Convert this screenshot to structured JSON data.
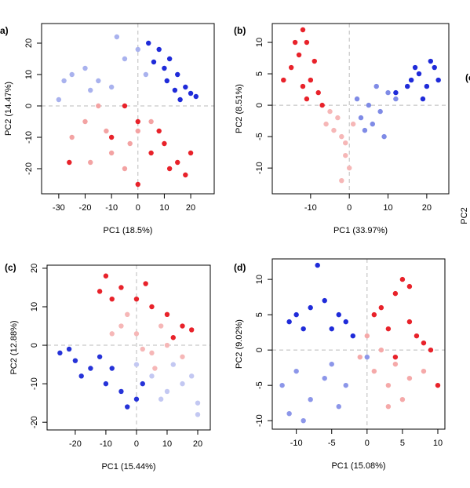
{
  "chart_data": [
    {
      "type": "scatter",
      "label": "(a)",
      "xlabel": "PC1 (18.5%)",
      "ylabel": "PC2 (14.47%)",
      "xlim": [
        -36.5,
        28.9
      ],
      "ylim": [
        -28,
        26.25
      ],
      "xticks": [
        -30,
        -20,
        -10,
        0,
        10,
        20
      ],
      "yticks": [
        -20,
        -10,
        0,
        10,
        20
      ],
      "hline": 0,
      "vline": 0,
      "series": [
        {
          "color": "#1f2bd9",
          "x": [
            8,
            12,
            15,
            18,
            20,
            14,
            10,
            6,
            16,
            22,
            11,
            4
          ],
          "values": [
            18,
            15,
            10,
            6,
            4,
            5,
            12,
            14,
            2,
            3,
            8,
            20
          ]
        },
        {
          "color": "#a9b2ee",
          "x": [
            -25,
            -20,
            -15,
            -10,
            -5,
            0,
            -18,
            -30,
            -8,
            3,
            -28
          ],
          "values": [
            10,
            12,
            8,
            6,
            15,
            18,
            5,
            2,
            22,
            10,
            8
          ]
        },
        {
          "color": "#f3a3a3",
          "x": [
            -20,
            -15,
            -10,
            -5,
            -25,
            0,
            -12,
            -18,
            5,
            -3
          ],
          "values": [
            -5,
            0,
            -15,
            -20,
            -10,
            -8,
            -8,
            -18,
            -5,
            -12
          ]
        },
        {
          "color": "#e8222a",
          "x": [
            5,
            10,
            15,
            20,
            0,
            -5,
            -10,
            8,
            18,
            -26,
            0,
            12
          ],
          "values": [
            -15,
            -12,
            -18,
            -15,
            -5,
            0,
            -10,
            -8,
            -22,
            -18,
            -25,
            -20
          ]
        }
      ]
    },
    {
      "type": "scatter",
      "label": "(b)",
      "xlabel": "PC1 (33.97%)",
      "ylabel": "PC2 (8.51%)",
      "xlim": [
        -19.9,
        25.7
      ],
      "ylim": [
        -14.1,
        13
      ],
      "xticks": [
        -10,
        0,
        10,
        20
      ],
      "yticks": [
        -10,
        -5,
        0,
        5,
        10
      ],
      "hline": 0,
      "vline": 0,
      "series": [
        {
          "color": "#1f2bd9",
          "x": [
            18,
            20,
            22,
            16,
            19,
            15,
            21,
            12,
            23,
            17
          ],
          "values": [
            5,
            3,
            6,
            4,
            1,
            3,
            7,
            2,
            4,
            6
          ]
        },
        {
          "color": "#7f8be6",
          "x": [
            5,
            8,
            10,
            3,
            6,
            12,
            2,
            7,
            4,
            9
          ],
          "values": [
            0,
            -1,
            2,
            -2,
            -3,
            1,
            1,
            3,
            -4,
            -5
          ]
        },
        {
          "color": "#f6b7b7",
          "x": [
            -3,
            -2,
            -1,
            -4,
            0,
            -2,
            -6,
            -1,
            -5,
            1
          ],
          "values": [
            -2,
            -5,
            -8,
            -4,
            -10,
            -12,
            -3,
            -6,
            -1,
            -3
          ]
        },
        {
          "color": "#e8222a",
          "x": [
            -13,
            -11,
            -15,
            -10,
            -8,
            -12,
            -14,
            -9,
            -11,
            -7,
            -17,
            -12
          ],
          "values": [
            8,
            10,
            6,
            4,
            2,
            3,
            10,
            7,
            1,
            0,
            4,
            12
          ]
        }
      ]
    },
    {
      "type": "scatter",
      "label": "(c)",
      "xlabel": "PC1 (15.44%)",
      "ylabel": "PC2 (12.88%)",
      "xlim": [
        -29.2,
        24.1
      ],
      "ylim": [
        -22,
        20.8
      ],
      "xticks": [
        -20,
        -10,
        0,
        10,
        20
      ],
      "yticks": [
        -20,
        -10,
        0,
        10,
        20
      ],
      "hline": 0,
      "vline": 0,
      "series": [
        {
          "color": "#e8222a",
          "x": [
            -10,
            -5,
            0,
            5,
            10,
            15,
            -8,
            3,
            12,
            -12,
            18
          ],
          "values": [
            18,
            15,
            12,
            10,
            8,
            5,
            12,
            16,
            2,
            14,
            4
          ]
        },
        {
          "color": "#f6b7b7",
          "x": [
            -5,
            0,
            5,
            10,
            -3,
            8,
            2,
            15,
            6,
            -8
          ],
          "values": [
            5,
            3,
            -2,
            0,
            8,
            5,
            -1,
            -3,
            -6,
            3
          ]
        },
        {
          "color": "#c3c8f2",
          "x": [
            5,
            10,
            15,
            20,
            0,
            12,
            18,
            8,
            20
          ],
          "values": [
            -8,
            -12,
            -10,
            -15,
            -5,
            -5,
            -8,
            -14,
            -18
          ]
        },
        {
          "color": "#2633d8",
          "x": [
            -25,
            -20,
            -15,
            -10,
            -5,
            0,
            -18,
            -12,
            -22,
            -8,
            2,
            -3
          ],
          "values": [
            -2,
            -4,
            -6,
            -10,
            -12,
            -14,
            -8,
            -3,
            -1,
            -6,
            -10,
            -16
          ]
        }
      ]
    },
    {
      "type": "scatter",
      "label": "(d)",
      "xlabel": "PC1 (15.08%)",
      "ylabel": "PC2 (9.02%)",
      "xlim": [
        -13.4,
        11
      ],
      "ylim": [
        -11.2,
        12.9
      ],
      "xticks": [
        -10,
        -5,
        0,
        5,
        10
      ],
      "yticks": [
        -10,
        -5,
        0,
        5,
        10
      ],
      "hline": 0,
      "vline": 0,
      "series": [
        {
          "color": "#1f2bd9",
          "x": [
            -10,
            -8,
            -5,
            -3,
            -6,
            -9,
            -4,
            -7,
            -11,
            -2
          ],
          "values": [
            5,
            6,
            3,
            4,
            7,
            3,
            5,
            12,
            4,
            2
          ]
        },
        {
          "color": "#8c96e9",
          "x": [
            -12,
            -10,
            -8,
            -5,
            -3,
            -9,
            -6,
            0,
            -11,
            -4
          ],
          "values": [
            -5,
            -3,
            -7,
            -2,
            -5,
            -10,
            -4,
            -1,
            -9,
            -8
          ]
        },
        {
          "color": "#f5a9a9",
          "x": [
            1,
            3,
            4,
            2,
            6,
            0,
            5,
            8,
            -1,
            3
          ],
          "values": [
            -3,
            -5,
            -2,
            0,
            -4,
            2,
            -7,
            -3,
            -1,
            -8
          ]
        },
        {
          "color": "#e8222a",
          "x": [
            2,
            4,
            6,
            5,
            7,
            8,
            3,
            6,
            9,
            4,
            10,
            1
          ],
          "values": [
            6,
            8,
            4,
            10,
            2,
            1,
            3,
            9,
            0,
            -1,
            -5,
            5
          ]
        }
      ]
    },
    {
      "type": "partial",
      "label": "(e)",
      "ylabel": "PC2"
    }
  ]
}
